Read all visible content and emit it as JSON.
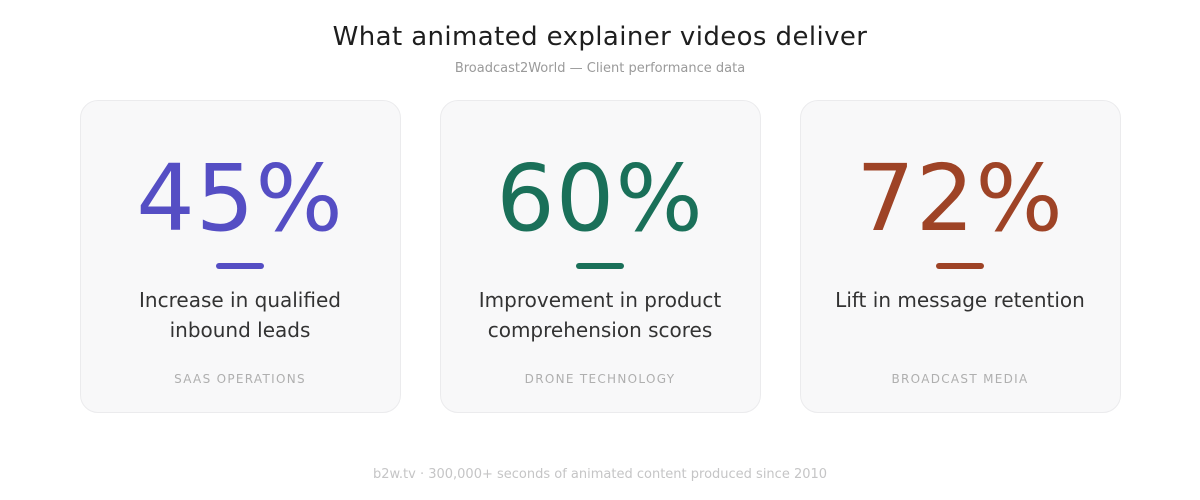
{
  "header": {
    "title": "What animated explainer videos deliver",
    "subtitle": "Broadcast2World — Client performance data"
  },
  "cards": [
    {
      "value": "45%",
      "accent": "#554EC4",
      "description": "Increase in qualified inbound leads",
      "category": "SAAS OPERATIONS"
    },
    {
      "value": "60%",
      "accent": "#1A7059",
      "description": "Improvement in product comprehension scores",
      "category": "DRONE TECHNOLOGY"
    },
    {
      "value": "72%",
      "accent": "#9E4326",
      "description": "Lift in message retention",
      "category": "BROADCAST MEDIA"
    }
  ],
  "footer": {
    "text": "b2w.tv  ·  300,000+ seconds of animated content produced since 2010"
  },
  "chart_data": {
    "type": "table",
    "title": "What animated explainer videos deliver",
    "subtitle": "Broadcast2World — Client performance data",
    "categories": [
      "SAAS OPERATIONS",
      "DRONE TECHNOLOGY",
      "BROADCAST MEDIA"
    ],
    "values": [
      45,
      60,
      72
    ],
    "unit": "%",
    "labels": [
      "Increase in qualified inbound leads",
      "Improvement in product comprehension scores",
      "Lift in message retention"
    ],
    "accent_colors": [
      "#554EC4",
      "#1A7059",
      "#9E4326"
    ],
    "footnote": "b2w.tv · 300,000+ seconds of animated content produced since 2010"
  }
}
